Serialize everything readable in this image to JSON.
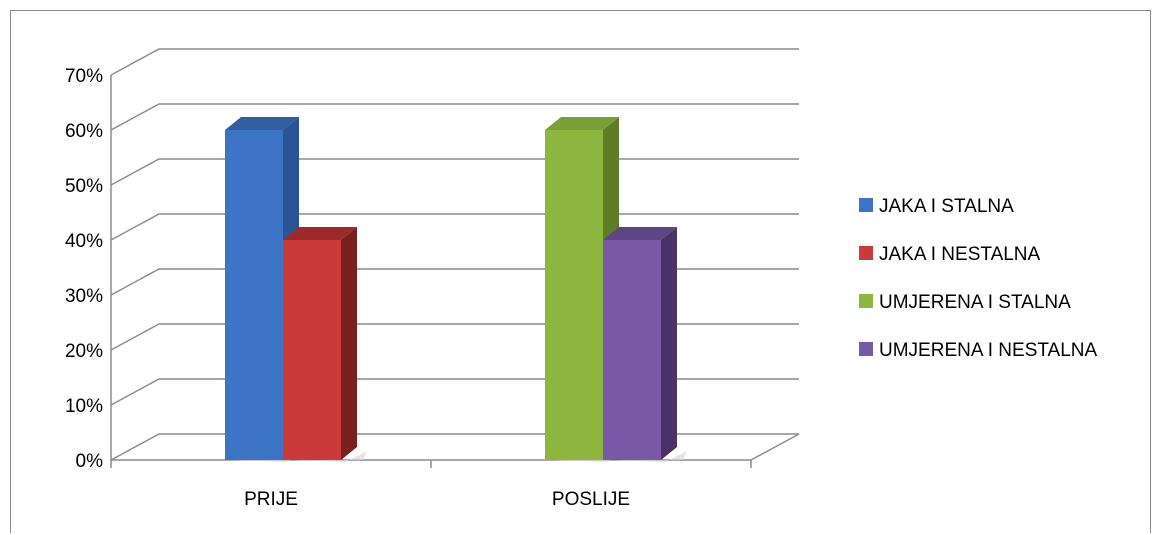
{
  "chart_data": {
    "type": "bar",
    "style": "3d-clustered-column",
    "categories": [
      "PRIJE",
      "POSLIJE"
    ],
    "series": [
      {
        "name": "JAKA I STALNA",
        "values": [
          60,
          null
        ],
        "color": "#3d74c6",
        "side_color": "#2a5496",
        "top_color": "#325f9f"
      },
      {
        "name": "JAKA I NESTALNA",
        "values": [
          40,
          null
        ],
        "color": "#c93a38",
        "side_color": "#7a1e1e",
        "top_color": "#9c2a28"
      },
      {
        "name": "UMJERENA I STALNA",
        "values": [
          null,
          60
        ],
        "color": "#8db63f",
        "side_color": "#5f7c27",
        "top_color": "#79a038"
      },
      {
        "name": "UMJERENA I NESTALNA",
        "values": [
          null,
          40
        ],
        "color": "#7a58a8",
        "side_color": "#4a3266",
        "top_color": "#5f4585"
      }
    ],
    "yticks": [
      "0%",
      "10%",
      "20%",
      "30%",
      "40%",
      "50%",
      "60%",
      "70%"
    ],
    "ylim": [
      0,
      70
    ],
    "ystep": 10,
    "grid": true,
    "legend_position": "right"
  }
}
